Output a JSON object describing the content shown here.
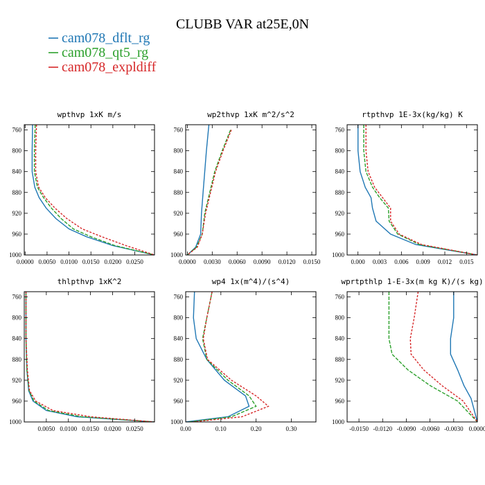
{
  "figure": {
    "title": "CLUBB VAR at25E,0N",
    "legend": [
      {
        "label": "cam078_dflt_rg",
        "color": "#1f77b4"
      },
      {
        "label": "cam078_qt5_rg",
        "color": "#2ca02c"
      },
      {
        "label": "cam078_expldiff",
        "color": "#d62728"
      }
    ]
  },
  "chart_data": [
    {
      "type": "line",
      "title": "wpthvp  1xK m/s",
      "xlim": [
        -0.0002,
        0.0295
      ],
      "ylim": [
        750,
        1000
      ],
      "xticks": [
        0.0,
        0.005,
        0.01,
        0.015,
        0.02,
        0.025
      ],
      "xtick_labels": [
        "0.0000",
        "0.0050",
        "0.0100",
        "0.0150",
        "0.0200",
        "0.0250"
      ],
      "yticks": [
        760,
        800,
        840,
        880,
        920,
        960,
        1000
      ],
      "series": [
        {
          "name": "cam078_dflt_rg",
          "points": [
            [
              0.0017,
              750
            ],
            [
              0.0016,
              800
            ],
            [
              0.0016,
              840
            ],
            [
              0.0022,
              870
            ],
            [
              0.0032,
              890
            ],
            [
              0.0048,
              910
            ],
            [
              0.007,
              930
            ],
            [
              0.01,
              950
            ],
            [
              0.014,
              965
            ],
            [
              0.02,
              982
            ],
            [
              0.0295,
              1000
            ]
          ]
        },
        {
          "name": "cam078_qt5_rg",
          "points": [
            [
              0.0023,
              750
            ],
            [
              0.0021,
              800
            ],
            [
              0.0021,
              840
            ],
            [
              0.0028,
              870
            ],
            [
              0.0042,
              890
            ],
            [
              0.006,
              910
            ],
            [
              0.0082,
              930
            ],
            [
              0.011,
              950
            ],
            [
              0.015,
              965
            ],
            [
              0.0205,
              982
            ],
            [
              0.0295,
              1000
            ]
          ]
        },
        {
          "name": "cam078_expldiff",
          "points": [
            [
              0.0026,
              750
            ],
            [
              0.0024,
              800
            ],
            [
              0.0024,
              840
            ],
            [
              0.0031,
              870
            ],
            [
              0.0046,
              890
            ],
            [
              0.0068,
              910
            ],
            [
              0.0095,
              930
            ],
            [
              0.013,
              950
            ],
            [
              0.0175,
              965
            ],
            [
              0.023,
              982
            ],
            [
              0.0295,
              1000
            ]
          ]
        }
      ]
    },
    {
      "type": "line",
      "title": "wp2thvp  1xK m^2/s^2",
      "xlim": [
        -0.0002,
        0.0155
      ],
      "ylim": [
        750,
        1000
      ],
      "xticks": [
        0.0,
        0.003,
        0.006,
        0.009,
        0.012,
        0.015
      ],
      "xtick_labels": [
        "0.0000",
        "0.0030",
        "0.0060",
        "0.0090",
        "0.0120",
        "0.0150"
      ],
      "yticks": [
        760,
        800,
        840,
        880,
        920,
        960,
        1000
      ],
      "series": [
        {
          "name": "cam078_dflt_rg",
          "points": [
            [
              0.0026,
              750
            ],
            [
              0.0023,
              800
            ],
            [
              0.0021,
              840
            ],
            [
              0.0019,
              880
            ],
            [
              0.0017,
              920
            ],
            [
              0.0016,
              960
            ],
            [
              0.001,
              985
            ],
            [
              0.0,
              1000
            ]
          ]
        },
        {
          "name": "cam078_qt5_rg",
          "points": [
            [
              0.0052,
              760
            ],
            [
              0.0042,
              800
            ],
            [
              0.0033,
              840
            ],
            [
              0.0027,
              880
            ],
            [
              0.0021,
              920
            ],
            [
              0.0018,
              960
            ],
            [
              0.0011,
              985
            ],
            [
              0.0,
              1000
            ]
          ]
        },
        {
          "name": "cam078_expldiff",
          "points": [
            [
              0.0053,
              760
            ],
            [
              0.0043,
              800
            ],
            [
              0.0034,
              840
            ],
            [
              0.0028,
              880
            ],
            [
              0.0022,
              920
            ],
            [
              0.0018,
              960
            ],
            [
              0.0012,
              985
            ],
            [
              0.0,
              1000
            ]
          ]
        }
      ]
    },
    {
      "type": "line",
      "title": "rtpthvp  1E-3x(kg/kg) K",
      "xlim": [
        -0.0015,
        0.0165
      ],
      "ylim": [
        750,
        1000
      ],
      "xticks": [
        0.0,
        0.003,
        0.006,
        0.009,
        0.012,
        0.015
      ],
      "xtick_labels": [
        "0.000",
        "0.003",
        "0.006",
        "0.009",
        "0.012",
        "0.015"
      ],
      "yticks": [
        760,
        800,
        840,
        880,
        920,
        960,
        1000
      ],
      "series": [
        {
          "name": "cam078_dflt_rg",
          "points": [
            [
              0.0,
              750
            ],
            [
              0.0,
              800
            ],
            [
              0.0003,
              840
            ],
            [
              0.001,
              870
            ],
            [
              0.0018,
              890
            ],
            [
              0.002,
              910
            ],
            [
              0.0025,
              935
            ],
            [
              0.0045,
              960
            ],
            [
              0.008,
              980
            ],
            [
              0.0165,
              1000
            ]
          ]
        },
        {
          "name": "cam078_qt5_rg",
          "points": [
            [
              0.0008,
              750
            ],
            [
              0.0008,
              800
            ],
            [
              0.0011,
              840
            ],
            [
              0.002,
              870
            ],
            [
              0.003,
              890
            ],
            [
              0.0042,
              910
            ],
            [
              0.0043,
              935
            ],
            [
              0.0055,
              960
            ],
            [
              0.0085,
              980
            ],
            [
              0.0165,
              1000
            ]
          ]
        },
        {
          "name": "cam078_expldiff",
          "points": [
            [
              0.0011,
              750
            ],
            [
              0.0011,
              800
            ],
            [
              0.0014,
              840
            ],
            [
              0.0023,
              870
            ],
            [
              0.0034,
              890
            ],
            [
              0.0045,
              910
            ],
            [
              0.0045,
              935
            ],
            [
              0.0057,
              960
            ],
            [
              0.0088,
              980
            ],
            [
              0.0165,
              1000
            ]
          ]
        }
      ]
    },
    {
      "type": "line",
      "title": "thlpthvp  1xK^2",
      "xlim": [
        0.0,
        0.0295
      ],
      "ylim": [
        750,
        1000
      ],
      "xticks": [
        0.005,
        0.01,
        0.015,
        0.02,
        0.025
      ],
      "xtick_labels": [
        "0.0050",
        "0.0100",
        "0.0150",
        "0.0200",
        "0.0250"
      ],
      "yticks": [
        760,
        800,
        840,
        880,
        920,
        960,
        1000
      ],
      "series": [
        {
          "name": "cam078_dflt_rg",
          "points": [
            [
              0.0004,
              750
            ],
            [
              0.0004,
              840
            ],
            [
              0.0006,
              900
            ],
            [
              0.001,
              940
            ],
            [
              0.002,
              960
            ],
            [
              0.005,
              978
            ],
            [
              0.012,
              990
            ],
            [
              0.0295,
              1000
            ]
          ]
        },
        {
          "name": "cam078_qt5_rg",
          "points": [
            [
              0.0004,
              750
            ],
            [
              0.0004,
              840
            ],
            [
              0.0006,
              900
            ],
            [
              0.0011,
              940
            ],
            [
              0.0022,
              960
            ],
            [
              0.0055,
              978
            ],
            [
              0.013,
              990
            ],
            [
              0.0295,
              1000
            ]
          ]
        },
        {
          "name": "cam078_expldiff",
          "points": [
            [
              0.0004,
              750
            ],
            [
              0.0004,
              840
            ],
            [
              0.0007,
              900
            ],
            [
              0.0012,
              940
            ],
            [
              0.0026,
              960
            ],
            [
              0.0065,
              978
            ],
            [
              0.015,
              990
            ],
            [
              0.0295,
              1000
            ]
          ]
        }
      ]
    },
    {
      "type": "line",
      "title": "wp4  1x(m^4)/(s^4)",
      "xlim": [
        0.0,
        0.37
      ],
      "ylim": [
        750,
        1000
      ],
      "xticks": [
        0.0,
        0.1,
        0.2,
        0.3
      ],
      "xtick_labels": [
        "0.00",
        "0.10",
        "0.20",
        "0.30"
      ],
      "yticks": [
        760,
        800,
        840,
        880,
        920,
        960,
        1000
      ],
      "series": [
        {
          "name": "cam078_dflt_rg",
          "points": [
            [
              0.025,
              750
            ],
            [
              0.022,
              800
            ],
            [
              0.03,
              840
            ],
            [
              0.06,
              880
            ],
            [
              0.11,
              920
            ],
            [
              0.17,
              950
            ],
            [
              0.18,
              970
            ],
            [
              0.12,
              990
            ],
            [
              0.0,
              1000
            ]
          ]
        },
        {
          "name": "cam078_qt5_rg",
          "points": [
            [
              0.075,
              750
            ],
            [
              0.06,
              800
            ],
            [
              0.048,
              840
            ],
            [
              0.06,
              880
            ],
            [
              0.12,
              920
            ],
            [
              0.18,
              950
            ],
            [
              0.2,
              970
            ],
            [
              0.13,
              990
            ],
            [
              0.01,
              1000
            ]
          ]
        },
        {
          "name": "cam078_expldiff",
          "points": [
            [
              0.075,
              750
            ],
            [
              0.06,
              800
            ],
            [
              0.05,
              840
            ],
            [
              0.062,
              880
            ],
            [
              0.13,
              920
            ],
            [
              0.2,
              950
            ],
            [
              0.235,
              970
            ],
            [
              0.16,
              990
            ],
            [
              0.02,
              1000
            ]
          ]
        }
      ]
    },
    {
      "type": "line",
      "title": "wprtpthlp  1-E-3x(m kg K)/(s kg)",
      "xlim": [
        -0.0165,
        0.0
      ],
      "ylim": [
        750,
        1000
      ],
      "xticks": [
        -0.015,
        -0.012,
        -0.009,
        -0.006,
        -0.003,
        0.0
      ],
      "xtick_labels": [
        "-0.0150",
        "-0.0120",
        "-0.0090",
        "-0.0060",
        "-0.0030",
        "0.0000"
      ],
      "yticks": [
        760,
        800,
        840,
        880,
        920,
        960,
        1000
      ],
      "series": [
        {
          "name": "cam078_dflt_rg",
          "points": [
            [
              -0.003,
              750
            ],
            [
              -0.003,
              800
            ],
            [
              -0.0034,
              840
            ],
            [
              -0.0034,
              870
            ],
            [
              -0.0025,
              900
            ],
            [
              -0.0017,
              930
            ],
            [
              -0.0008,
              955
            ],
            [
              0.0,
              1000
            ]
          ]
        },
        {
          "name": "cam078_qt5_rg",
          "points": [
            [
              -0.0112,
              750
            ],
            [
              -0.0112,
              800
            ],
            [
              -0.0112,
              840
            ],
            [
              -0.0108,
              870
            ],
            [
              -0.0088,
              900
            ],
            [
              -0.006,
              930
            ],
            [
              -0.0025,
              960
            ],
            [
              0.0,
              1000
            ]
          ]
        },
        {
          "name": "cam078_expldiff",
          "points": [
            [
              -0.0075,
              750
            ],
            [
              -0.008,
              800
            ],
            [
              -0.0085,
              840
            ],
            [
              -0.0084,
              870
            ],
            [
              -0.0068,
              900
            ],
            [
              -0.0045,
              930
            ],
            [
              -0.0018,
              960
            ],
            [
              0.0,
              1000
            ]
          ]
        }
      ]
    }
  ]
}
